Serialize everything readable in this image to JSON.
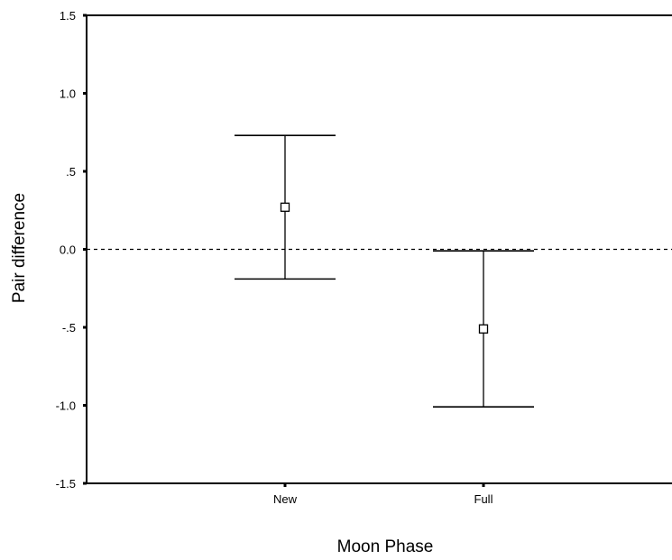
{
  "chart_data": {
    "type": "errorbar",
    "xlabel": "Moon Phase",
    "ylabel": "Pair difference",
    "categories": [
      "New",
      "Full"
    ],
    "means": [
      0.27,
      -0.51
    ],
    "lower": [
      -0.19,
      -1.01
    ],
    "upper": [
      0.73,
      -0.01
    ],
    "ylim": [
      -1.5,
      1.5
    ],
    "yticks": [
      1.5,
      1.0,
      0.5,
      0.0,
      -0.5,
      -1.0,
      -1.5
    ],
    "ytick_labels": [
      "1.5",
      "1.0",
      ".5",
      "0.0",
      "-.5",
      "-1.0",
      "-1.5"
    ],
    "reference_line": {
      "y": 0.0,
      "style": "dashed"
    },
    "marker": "open-square",
    "grid": false
  }
}
